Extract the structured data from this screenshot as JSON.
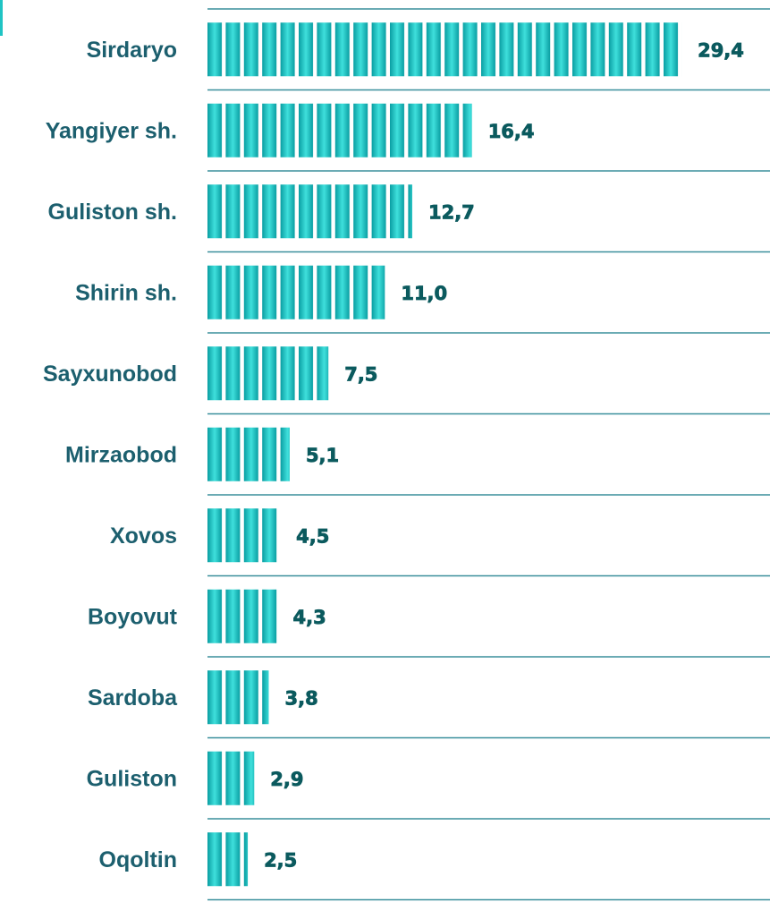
{
  "chart_data": {
    "type": "bar",
    "orientation": "horizontal",
    "color": "#1fc4c4",
    "categories": [
      "Sirdaryo",
      "Yangiyer sh.",
      "Guliston sh.",
      "Shirin sh.",
      "Sayxunobod",
      "Mirzaobod",
      "Xovos",
      "Boyovut",
      "Sardoba",
      "Guliston",
      "Oqoltin"
    ],
    "values": [
      29.4,
      16.4,
      12.7,
      11.0,
      7.5,
      5.1,
      4.5,
      4.3,
      3.8,
      2.9,
      2.5
    ],
    "value_labels": [
      "29,4",
      "16,4",
      "12,7",
      "11,0",
      "7,5",
      "5,1",
      "4,5",
      "4,3",
      "3,8",
      "2,9",
      "2,5"
    ]
  }
}
